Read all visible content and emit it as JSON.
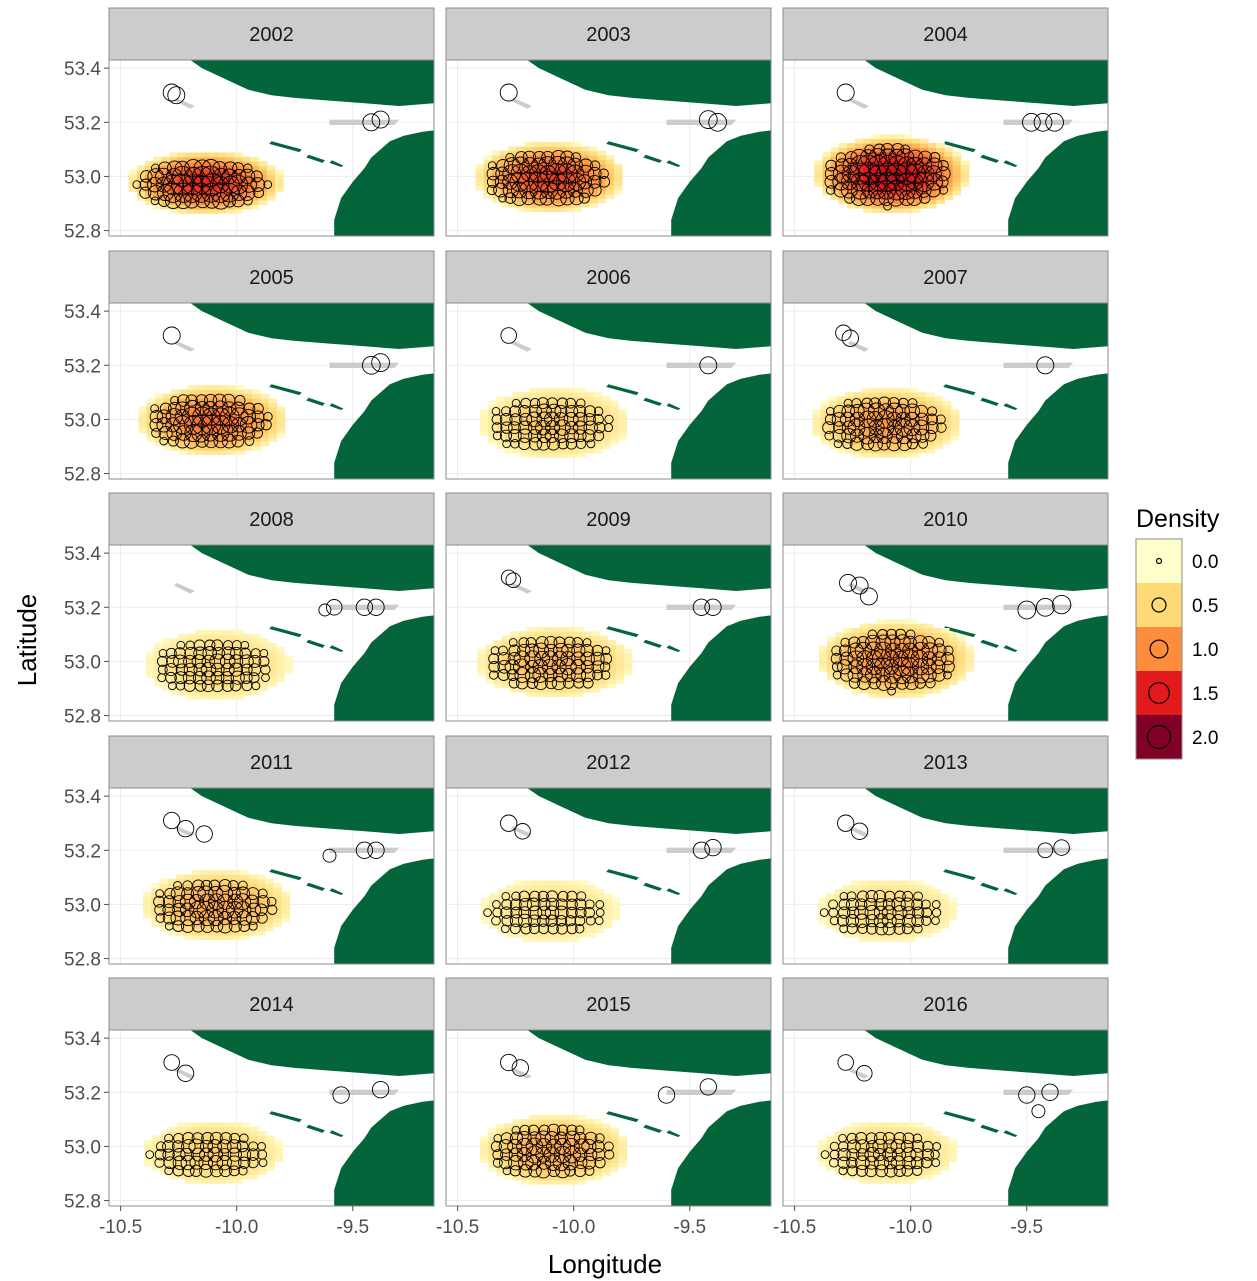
{
  "chart_data": {
    "type": "scatter",
    "xlabel": "Longitude",
    "ylabel": "Latitude",
    "xlim": [
      -10.55,
      -9.15
    ],
    "ylim": [
      52.78,
      53.43
    ],
    "x_ticks": [
      "-10.5",
      "-10.0",
      "-9.5"
    ],
    "y_ticks": [
      "52.8",
      "53.0",
      "53.2",
      "53.4"
    ],
    "x_tick_values": [
      -10.5,
      -10.0,
      -9.5
    ],
    "y_tick_values": [
      52.8,
      53.0,
      53.2,
      53.4
    ],
    "panels": [
      {
        "year": "2002",
        "peak": 1.4,
        "blob": [
          -10.15,
          52.97,
          0.28,
          0.09
        ],
        "extra": [
          [
            -10.28,
            53.31,
            0.9
          ],
          [
            -10.26,
            53.3,
            0.9
          ],
          [
            -9.42,
            53.2,
            0.9
          ],
          [
            -9.38,
            53.21,
            0.9
          ]
        ]
      },
      {
        "year": "2003",
        "peak": 1.3,
        "blob": [
          -10.12,
          52.99,
          0.27,
          0.1
        ],
        "extra": [
          [
            -10.28,
            53.31,
            0.9
          ],
          [
            -9.42,
            53.21,
            1.0
          ],
          [
            -9.38,
            53.2,
            1.0
          ]
        ]
      },
      {
        "year": "2004",
        "peak": 1.6,
        "blob": [
          -10.1,
          53.0,
          0.28,
          0.11
        ],
        "extra": [
          [
            -10.28,
            53.31,
            0.9
          ],
          [
            -9.48,
            53.2,
            1.0
          ],
          [
            -9.43,
            53.2,
            1.0
          ],
          [
            -9.38,
            53.2,
            1.0
          ]
        ]
      },
      {
        "year": "2005",
        "peak": 1.1,
        "blob": [
          -10.12,
          52.99,
          0.27,
          0.1
        ],
        "extra": [
          [
            -10.28,
            53.31,
            0.9
          ],
          [
            -9.42,
            53.2,
            1.0
          ],
          [
            -9.38,
            53.21,
            1.0
          ]
        ]
      },
      {
        "year": "2006",
        "peak": 0.6,
        "blob": [
          -10.1,
          52.98,
          0.27,
          0.1
        ],
        "extra": [
          [
            -10.28,
            53.31,
            0.7
          ],
          [
            -9.42,
            53.2,
            0.9
          ]
        ]
      },
      {
        "year": "2007",
        "peak": 0.9,
        "blob": [
          -10.12,
          52.98,
          0.27,
          0.1
        ],
        "extra": [
          [
            -10.29,
            53.32,
            0.7
          ],
          [
            -10.26,
            53.3,
            0.8
          ],
          [
            -9.42,
            53.2,
            0.9
          ]
        ]
      },
      {
        "year": "2008",
        "peak": 0.5,
        "blob": [
          -10.1,
          52.98,
          0.26,
          0.1
        ],
        "extra": [
          [
            -9.62,
            53.19,
            0.3
          ],
          [
            -9.58,
            53.2,
            0.7
          ],
          [
            -9.45,
            53.2,
            0.8
          ],
          [
            -9.4,
            53.2,
            0.8
          ]
        ]
      },
      {
        "year": "2009",
        "peak": 0.7,
        "blob": [
          -10.1,
          52.99,
          0.28,
          0.1
        ],
        "extra": [
          [
            -10.28,
            53.31,
            0.6
          ],
          [
            -10.26,
            53.3,
            0.6
          ],
          [
            -9.45,
            53.2,
            0.8
          ],
          [
            -9.4,
            53.2,
            0.8
          ]
        ]
      },
      {
        "year": "2010",
        "peak": 1.0,
        "blob": [
          -10.08,
          53.0,
          0.28,
          0.11
        ],
        "extra": [
          [
            -10.27,
            53.29,
            0.9
          ],
          [
            -10.22,
            53.28,
            0.9
          ],
          [
            -10.18,
            53.24,
            0.9
          ],
          [
            -9.5,
            53.19,
            1.0
          ],
          [
            -9.42,
            53.2,
            1.0
          ],
          [
            -9.35,
            53.21,
            1.1
          ]
        ]
      },
      {
        "year": "2011",
        "peak": 0.8,
        "blob": [
          -10.1,
          52.99,
          0.27,
          0.1
        ],
        "extra": [
          [
            -10.28,
            53.31,
            0.8
          ],
          [
            -10.22,
            53.28,
            0.8
          ],
          [
            -10.14,
            53.26,
            0.8
          ],
          [
            -9.6,
            53.18,
            0.4
          ],
          [
            -9.45,
            53.2,
            0.8
          ],
          [
            -9.4,
            53.2,
            0.8
          ]
        ]
      },
      {
        "year": "2012",
        "peak": 0.4,
        "blob": [
          -10.12,
          52.97,
          0.25,
          0.09
        ],
        "extra": [
          [
            -10.28,
            53.3,
            0.8
          ],
          [
            -10.22,
            53.27,
            0.7
          ],
          [
            -9.45,
            53.2,
            0.8
          ],
          [
            -9.4,
            53.21,
            0.8
          ]
        ]
      },
      {
        "year": "2013",
        "peak": 0.45,
        "blob": [
          -10.12,
          52.97,
          0.25,
          0.09
        ],
        "extra": [
          [
            -10.28,
            53.3,
            0.8
          ],
          [
            -10.22,
            53.27,
            0.8
          ],
          [
            -9.42,
            53.2,
            0.6
          ],
          [
            -9.35,
            53.21,
            0.7
          ]
        ]
      },
      {
        "year": "2014",
        "peak": 0.55,
        "blob": [
          -10.12,
          52.97,
          0.25,
          0.09
        ],
        "extra": [
          [
            -10.28,
            53.31,
            0.7
          ],
          [
            -10.22,
            53.27,
            0.8
          ],
          [
            -9.55,
            53.19,
            0.8
          ],
          [
            -9.38,
            53.21,
            0.8
          ]
        ]
      },
      {
        "year": "2015",
        "peak": 0.8,
        "blob": [
          -10.1,
          52.98,
          0.27,
          0.1
        ],
        "extra": [
          [
            -10.28,
            53.31,
            0.8
          ],
          [
            -10.23,
            53.29,
            0.8
          ],
          [
            -9.6,
            53.19,
            0.8
          ],
          [
            -9.42,
            53.22,
            0.8
          ]
        ]
      },
      {
        "year": "2016",
        "peak": 0.5,
        "blob": [
          -10.12,
          52.97,
          0.25,
          0.09
        ],
        "extra": [
          [
            -10.28,
            53.31,
            0.7
          ],
          [
            -10.2,
            53.27,
            0.7
          ],
          [
            -9.5,
            53.19,
            0.8
          ],
          [
            -9.4,
            53.2,
            0.8
          ],
          [
            -9.45,
            53.13,
            0.4
          ]
        ]
      }
    ],
    "legend": {
      "title": "Density",
      "placement": "right",
      "items": [
        {
          "label": "0.0",
          "value": 0.0,
          "color": "#ffffcc"
        },
        {
          "label": "0.5",
          "value": 0.5,
          "color": "#fed976"
        },
        {
          "label": "1.0",
          "value": 1.0,
          "color": "#fd8d3c"
        },
        {
          "label": "1.5",
          "value": 1.5,
          "color": "#e31a1c"
        },
        {
          "label": "2.0",
          "value": 2.0,
          "color": "#800026"
        }
      ]
    },
    "colors": {
      "land": "#04653a",
      "strip": "#cccccc",
      "panel_border": "#8c8c8c",
      "grid": "#ebebeb",
      "islands_gray": "#cccccc"
    },
    "grid": true
  }
}
